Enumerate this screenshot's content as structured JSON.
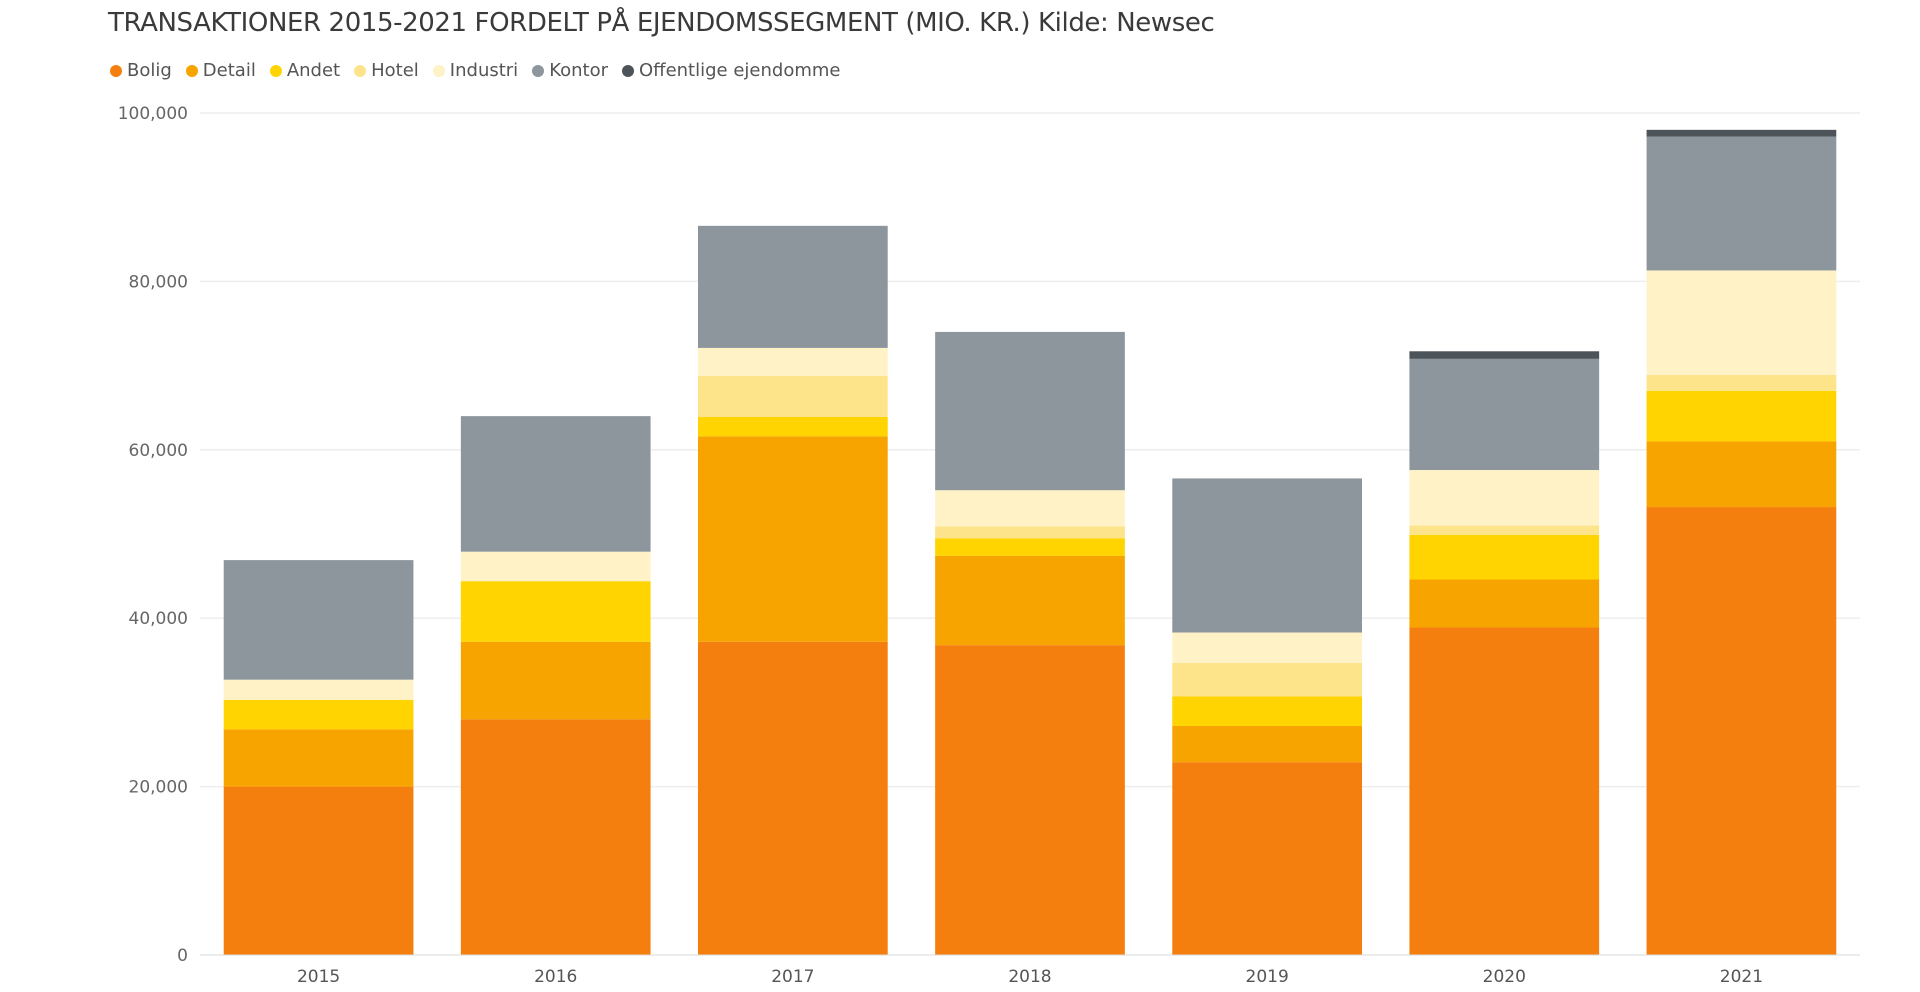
{
  "chart_data": {
    "type": "bar",
    "stacked": true,
    "title": "TRANSAKTIONER 2015-2021 FORDELT PÅ EJENDOMSSEGMENT (MIO. KR.) Kilde: Newsec",
    "categories": [
      "2015",
      "2016",
      "2017",
      "2018",
      "2019",
      "2020",
      "2021"
    ],
    "ylim": [
      0,
      100000
    ],
    "yticks": [
      {
        "value": 0,
        "label": "0"
      },
      {
        "value": 20000,
        "label": "20,000"
      },
      {
        "value": 40000,
        "label": "40,000"
      },
      {
        "value": 60000,
        "label": "60,000"
      },
      {
        "value": 80000,
        "label": "80,000"
      },
      {
        "value": 100000,
        "label": "100,000"
      }
    ],
    "grid": true,
    "legend_position": "top-left",
    "series": [
      {
        "name": "Bolig",
        "color": "#F57F0E",
        "values": [
          20000,
          28000,
          37200,
          36800,
          22900,
          38900,
          53200
        ]
      },
      {
        "name": "Detail",
        "color": "#F7A400",
        "values": [
          6800,
          9200,
          24400,
          10600,
          4300,
          5700,
          7800
        ]
      },
      {
        "name": "Andet",
        "color": "#FFD400",
        "values": [
          3500,
          7200,
          2300,
          2100,
          3500,
          5300,
          6000
        ]
      },
      {
        "name": "Hotel",
        "color": "#FDE48A",
        "values": [
          0,
          0,
          4900,
          1400,
          4000,
          1100,
          1900
        ]
      },
      {
        "name": "Industri",
        "color": "#FEF2C6",
        "values": [
          2400,
          3500,
          3300,
          4300,
          3600,
          6600,
          12400
        ]
      },
      {
        "name": "Kontor",
        "color": "#8E969D",
        "values": [
          14200,
          16100,
          14500,
          18800,
          18300,
          13200,
          15900
        ]
      },
      {
        "name": "Offentlige ejendomme",
        "color": "#4D5459",
        "values": [
          0,
          0,
          0,
          0,
          0,
          900,
          800
        ]
      }
    ]
  }
}
